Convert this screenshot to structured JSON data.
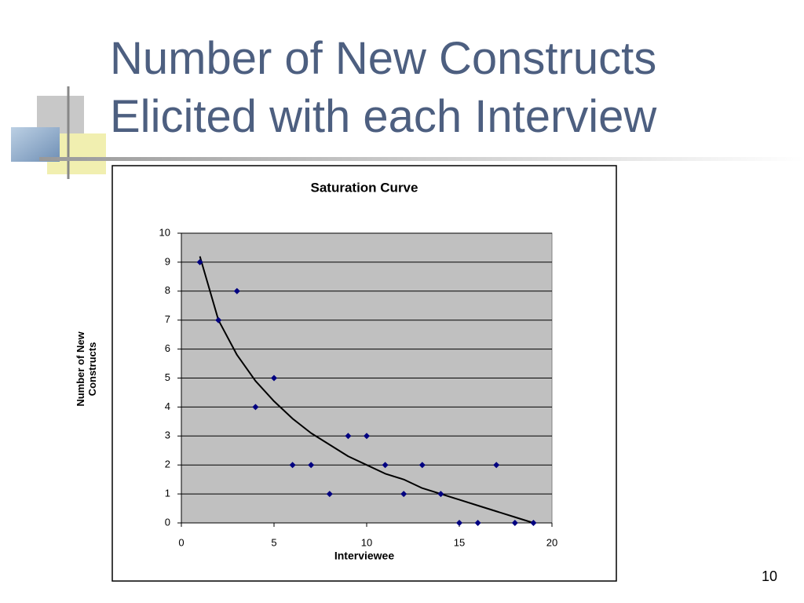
{
  "slide": {
    "title": "Number of New Constructs Elicited with each Interview",
    "page_number": "10"
  },
  "chart_data": {
    "type": "scatter",
    "title": "Saturation Curve",
    "xlabel": "Interviewee",
    "ylabel": "Number of New Constructs",
    "x": [
      1,
      2,
      3,
      4,
      5,
      6,
      7,
      8,
      9,
      10,
      11,
      12,
      13,
      14,
      15,
      16,
      17,
      18,
      19
    ],
    "values": [
      9,
      7,
      8,
      4,
      5,
      2,
      2,
      1,
      3,
      3,
      2,
      1,
      2,
      1,
      0,
      0,
      2,
      0,
      0
    ],
    "color": "#000080",
    "trendline": {
      "color": "#000000",
      "x": [
        1,
        2,
        3,
        4,
        5,
        6,
        7,
        8,
        9,
        10,
        11,
        12,
        13,
        14,
        15,
        16,
        17,
        18,
        19
      ],
      "values": [
        9.2,
        7.0,
        5.8,
        4.9,
        4.2,
        3.6,
        3.1,
        2.7,
        2.3,
        2.0,
        1.7,
        1.5,
        1.2,
        1.0,
        0.8,
        0.6,
        0.4,
        0.2,
        0.0
      ]
    },
    "xlim": [
      0,
      20
    ],
    "xticks": [
      0,
      5,
      10,
      15,
      20
    ],
    "ylim": [
      0,
      10
    ],
    "yticks": [
      0,
      1,
      2,
      3,
      4,
      5,
      6,
      7,
      8,
      9,
      10
    ],
    "grid": true
  }
}
